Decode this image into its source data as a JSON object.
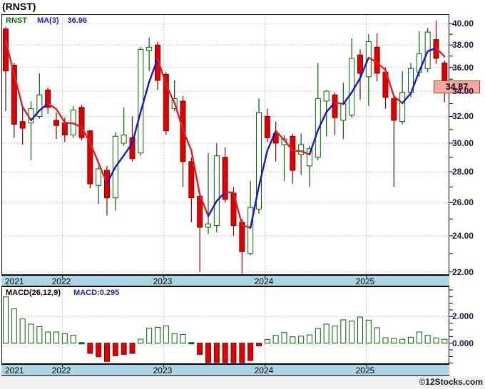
{
  "title": "(RNST)",
  "price_panel": {
    "legend": {
      "symbol": "RNST",
      "ma_label": "MA(3)",
      "ma_value": "36.96"
    },
    "axis_tick_labels": [
      "40.00",
      "38.00",
      "36.00",
      "34.00",
      "32.00",
      "30.00",
      "28.00",
      "26.00",
      "24.00",
      "22.00"
    ],
    "last_price_badge": "34.87"
  },
  "macd_panel": {
    "legend_label": "MACD(26,12,9)",
    "legend_value": "MACD:0.295",
    "axis_tick_labels": [
      "2.000",
      "0.000"
    ]
  },
  "x_axis_years": [
    "2021",
    "2022",
    "2023",
    "2024",
    "2025"
  ],
  "watermark": "©12Stocks.com",
  "colors": {
    "up_fill": "#ffffff",
    "up_stroke": "#006400",
    "down_fill": "#e00000",
    "down_stroke": "#8b0000",
    "ma_up": "#1515d0",
    "ma_down": "#e02020",
    "grid": "#b3b3b3",
    "axis_text": "#1b1b4b",
    "strip_bg": "#a9d6e5",
    "badge_bg": "#f7a8a0",
    "badge_border": "#c23b22"
  },
  "chart_data": [
    {
      "type": "candlestick",
      "title": "(RNST) monthly candles with MA(3)",
      "timeframe": "monthly",
      "start_month": "2021-06",
      "ylim": [
        22,
        40
      ],
      "y_scale": "log",
      "y_tick_step": 2,
      "grid": true,
      "ma_period": 3,
      "ma_seed_closes": [
        40.2,
        39.2
      ],
      "last_price": 34.87,
      "year_start_indices": [
        7,
        19,
        31,
        43
      ],
      "ohlc": [
        [
          39.5,
          39.7,
          32.4,
          35.7
        ],
        [
          36.2,
          36.4,
          30.4,
          31.4
        ],
        [
          31.6,
          32.8,
          29.9,
          31.1
        ],
        [
          31.5,
          33.2,
          28.8,
          32.6
        ],
        [
          32.0,
          35.5,
          31.8,
          33.7
        ],
        [
          34.1,
          34.3,
          32.2,
          32.7
        ],
        [
          31.7,
          32.3,
          30.3,
          31.3
        ],
        [
          31.5,
          31.9,
          30.1,
          30.6
        ],
        [
          30.6,
          32.8,
          30.4,
          32.5
        ],
        [
          32.7,
          32.9,
          30.2,
          30.4
        ],
        [
          30.9,
          31.0,
          26.9,
          27.2
        ],
        [
          27.1,
          28.4,
          25.9,
          28.2
        ],
        [
          28.1,
          28.4,
          25.2,
          26.3
        ],
        [
          26.3,
          30.8,
          25.5,
          30.5
        ],
        [
          30.0,
          32.7,
          29.8,
          30.6
        ],
        [
          30.4,
          32.0,
          28.7,
          28.9
        ],
        [
          29.3,
          37.8,
          29.1,
          37.6
        ],
        [
          37.5,
          38.7,
          35.7,
          37.8
        ],
        [
          38.0,
          38.3,
          34.1,
          34.9
        ],
        [
          35.4,
          35.6,
          30.6,
          30.9
        ],
        [
          32.6,
          34.9,
          32.4,
          33.4
        ],
        [
          33.2,
          33.6,
          27.0,
          28.7
        ],
        [
          28.7,
          29.0,
          24.8,
          26.3
        ],
        [
          26.4,
          26.6,
          22.0,
          24.5
        ],
        [
          24.5,
          29.3,
          24.1,
          24.7
        ],
        [
          24.6,
          30.0,
          24.2,
          29.1
        ],
        [
          29.0,
          29.7,
          26.0,
          26.2
        ],
        [
          26.6,
          27.0,
          24.0,
          24.6
        ],
        [
          24.8,
          25.0,
          21.9,
          23.1
        ],
        [
          23.0,
          27.4,
          22.9,
          25.7
        ],
        [
          25.6,
          33.4,
          25.3,
          32.3
        ],
        [
          32.0,
          32.6,
          30.1,
          30.4
        ],
        [
          30.7,
          31.6,
          28.7,
          30.0
        ],
        [
          29.9,
          30.6,
          27.4,
          30.3
        ],
        [
          30.5,
          30.7,
          27.2,
          28.1
        ],
        [
          29.2,
          30.7,
          27.8,
          29.9
        ],
        [
          28.4,
          29.8,
          27.0,
          29.6
        ],
        [
          29.0,
          36.4,
          28.8,
          33.4
        ],
        [
          33.2,
          34.1,
          30.5,
          34.0
        ],
        [
          33.7,
          33.9,
          30.6,
          31.9
        ],
        [
          31.7,
          34.7,
          30.3,
          33.0
        ],
        [
          32.1,
          38.6,
          31.9,
          36.8
        ],
        [
          37.1,
          37.6,
          33.3,
          35.5
        ],
        [
          35.2,
          39.0,
          32.8,
          38.3
        ],
        [
          37.8,
          39.1,
          34.8,
          35.5
        ],
        [
          35.6,
          36.0,
          32.6,
          33.5
        ],
        [
          33.4,
          33.6,
          27.0,
          31.7
        ],
        [
          31.6,
          35.7,
          31.4,
          33.9
        ],
        [
          33.9,
          36.4,
          33.5,
          35.9
        ],
        [
          35.6,
          39.3,
          35.2,
          37.2
        ],
        [
          35.9,
          39.6,
          35.6,
          39.2
        ],
        [
          38.5,
          40.3,
          36.3,
          36.8
        ],
        [
          36.4,
          36.6,
          33.1,
          34.87
        ]
      ]
    },
    {
      "type": "bar",
      "title": "MACD(26,12,9) histogram",
      "last_value": 0.295,
      "y_axis_labeled_values": [
        2.0,
        0.0
      ],
      "values": [
        3.48,
        2.58,
        1.82,
        1.43,
        1.25,
        0.84,
        0.84,
        0.71,
        0.59,
        0.05,
        -0.77,
        -1.02,
        -1.37,
        -0.94,
        -0.84,
        -0.77,
        0.3,
        1.12,
        1.19,
        1.3,
        0.71,
        0.66,
        0.05,
        -0.84,
        -1.52,
        -1.78,
        -1.69,
        -1.6,
        -1.52,
        -1.3,
        -0.2,
        0.27,
        0.59,
        0.8,
        0.48,
        0.53,
        0.62,
        1.1,
        1.43,
        1.3,
        1.75,
        1.66,
        1.96,
        1.73,
        1.16,
        0.41,
        0.36,
        0.3,
        0.45,
        0.84,
        0.59,
        0.4,
        0.295
      ]
    }
  ]
}
